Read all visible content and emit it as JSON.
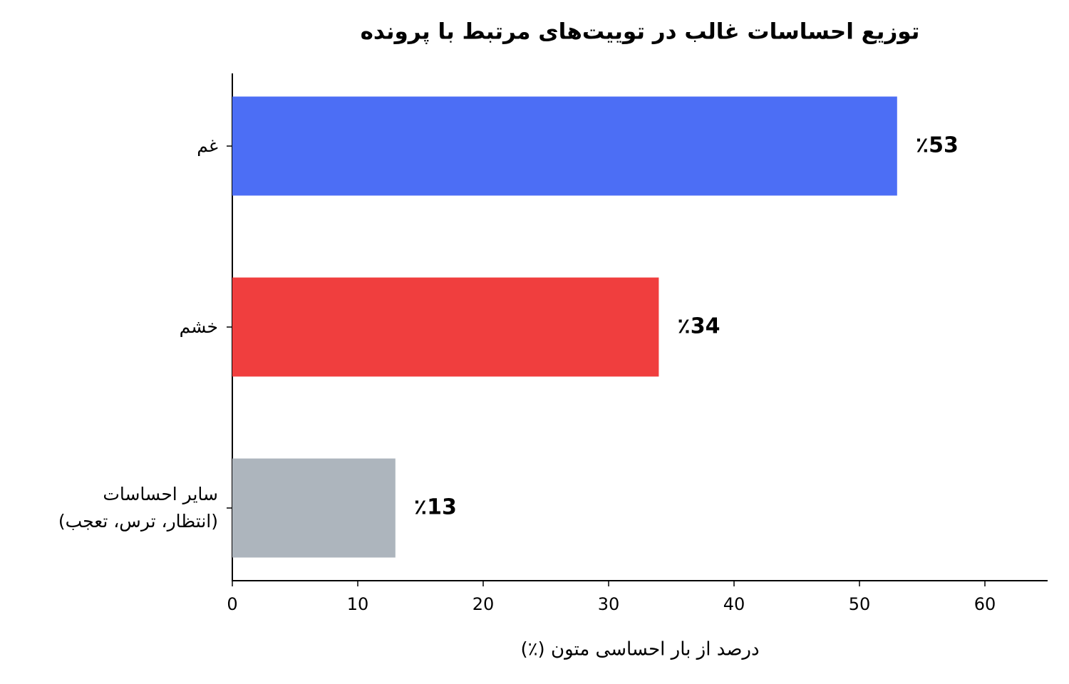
{
  "chart_data": {
    "type": "barh",
    "title": "توزیع احساسات غالب در توییت‌های مرتبط با پرونده",
    "xlabel": "درصد از بار احساسی متون (٪)",
    "categories": [
      "غم",
      "خشم",
      "سایر احساسات\n(انتظار، ترس، تعجب)"
    ],
    "values": [
      53,
      34,
      13
    ],
    "value_labels": [
      "٪53",
      "٪34",
      "٪13"
    ],
    "colors": [
      "#4c6ef5",
      "#f03e3e",
      "#adb5bd"
    ],
    "xlim": [
      0,
      65
    ],
    "xticks": [
      0,
      10,
      20,
      30,
      40,
      50,
      60
    ]
  }
}
